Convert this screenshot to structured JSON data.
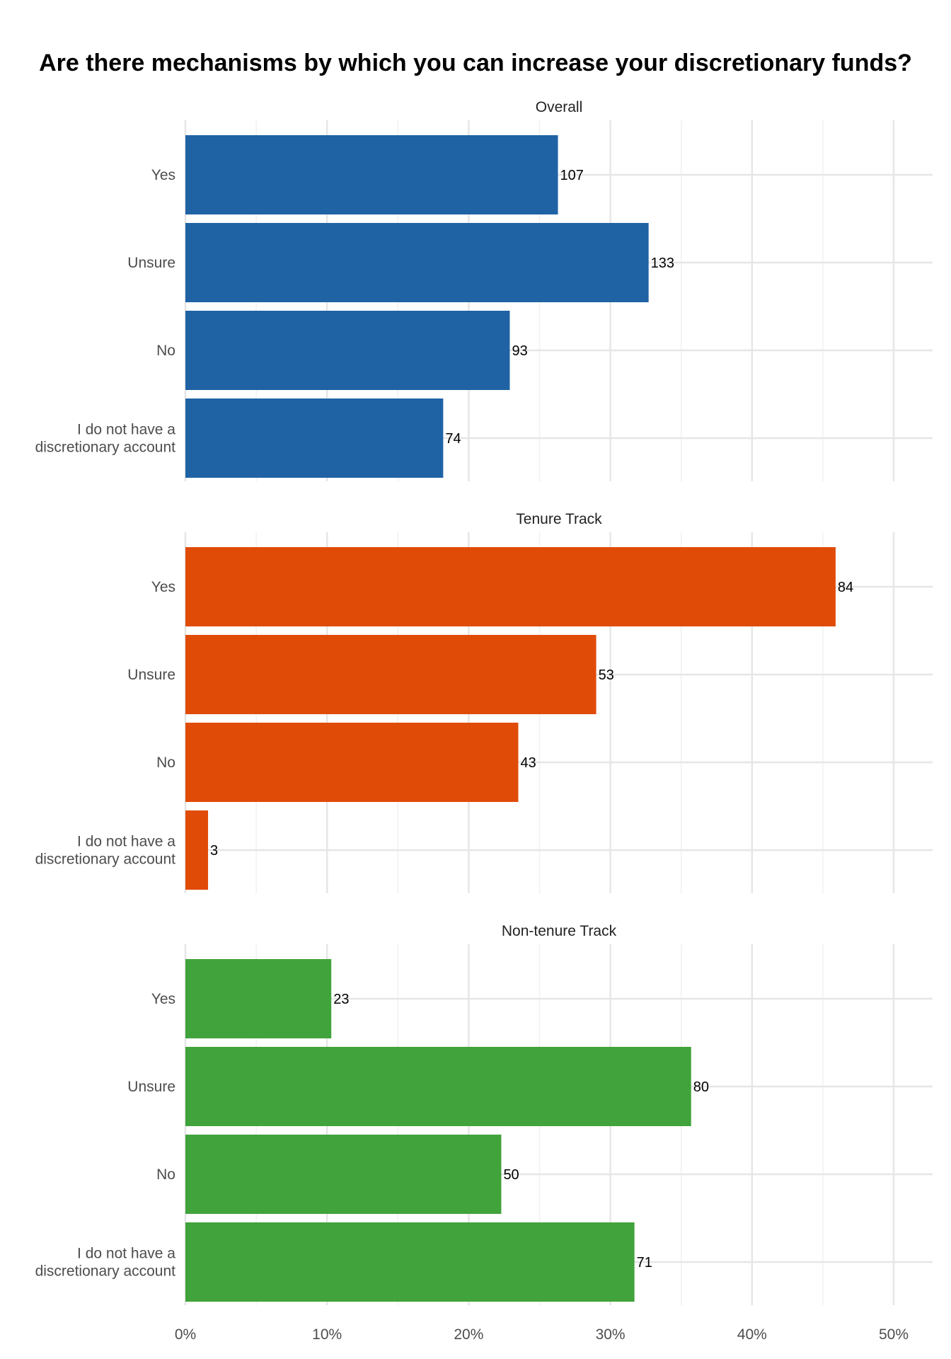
{
  "chart_data": {
    "type": "bar",
    "orientation": "horizontal",
    "title": "Are there mechanisms by which you can increase your discretionary funds?",
    "categories": [
      "Yes",
      "Unsure",
      "No",
      "I do not have a discretionary account"
    ],
    "category_lines": [
      [
        "Yes"
      ],
      [
        "Unsure"
      ],
      [
        "No"
      ],
      [
        "I do not have a",
        "discretionary account"
      ]
    ],
    "xlim": [
      0,
      0.5
    ],
    "x_ticks": [
      0,
      0.1,
      0.2,
      0.3,
      0.4,
      0.5
    ],
    "x_tick_labels": [
      "0%",
      "10%",
      "20%",
      "30%",
      "40%",
      "50%"
    ],
    "grid": true,
    "panels": [
      {
        "name": "Overall",
        "color": "#1f63a5",
        "counts": [
          107,
          133,
          93,
          74
        ],
        "values": [
          0.263,
          0.327,
          0.229,
          0.182
        ]
      },
      {
        "name": "Tenure Track",
        "color": "#e04b08",
        "counts": [
          84,
          53,
          43,
          3
        ],
        "values": [
          0.459,
          0.29,
          0.235,
          0.016
        ]
      },
      {
        "name": "Non-tenure Track",
        "color": "#40a33b",
        "counts": [
          23,
          80,
          50,
          71
        ],
        "values": [
          0.103,
          0.357,
          0.223,
          0.317
        ]
      }
    ]
  }
}
